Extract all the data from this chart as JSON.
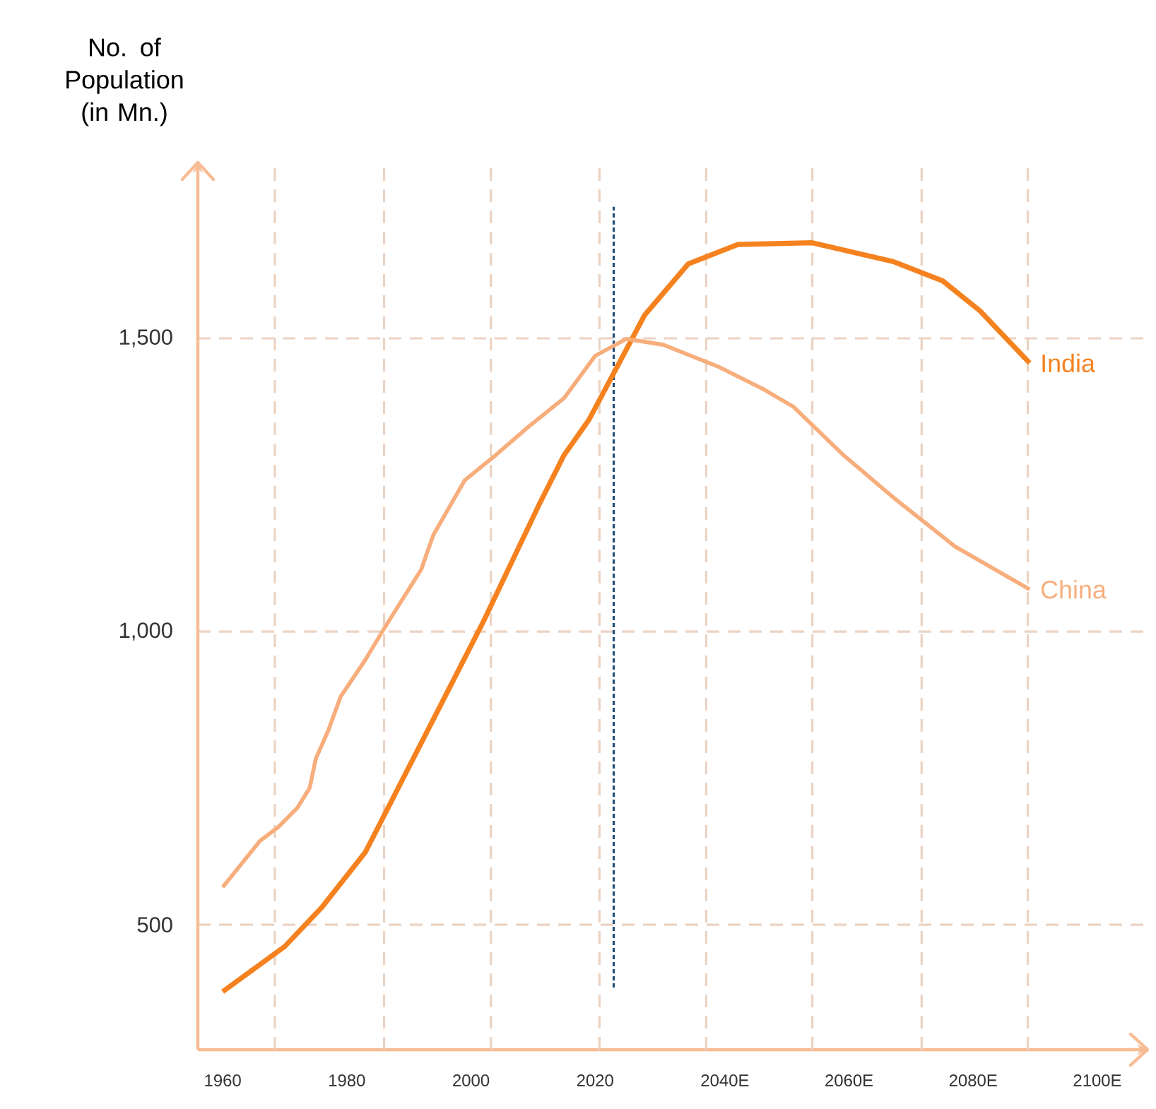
{
  "chart_data": {
    "type": "line",
    "ylabel": "No. of Population (in Mn.)",
    "x": [
      1960,
      1970,
      1976,
      1983,
      2002,
      2011,
      2015,
      2019,
      2028,
      2035,
      2043,
      2055,
      2068,
      2076,
      2082,
      2090
    ],
    "series": [
      {
        "name": "India",
        "color": "#f5821f",
        "values": [
          386,
          463,
          530,
          624,
          1017,
          1217,
          1301,
          1361,
          1540,
          1627,
          1660,
          1663,
          1631,
          1598,
          1547,
          1458
        ]
      },
      {
        "name": "China",
        "color": "#f7ae7c",
        "x": [
          1960,
          1966,
          1969,
          1972,
          1974,
          1975,
          1977,
          1979,
          1983,
          1986,
          1992,
          1993,
          1994,
          1999,
          2004,
          2009,
          2015,
          2020,
          2025,
          2031,
          2040,
          2047,
          2052,
          2060,
          2068,
          2078,
          2090
        ],
        "values": [
          564,
          643,
          667,
          699,
          733,
          783,
          831,
          889,
          952,
          1005,
          1106,
          1137,
          1166,
          1258,
          1301,
          1347,
          1398,
          1470,
          1499,
          1489,
          1451,
          1414,
          1383,
          1301,
          1229,
          1145,
          1072
        ]
      }
    ],
    "xlim": [
      1956,
      2109
    ],
    "ylim": [
      287,
      1800
    ],
    "xticks": [
      1960,
      {
        "value": 1968.4,
        "label": null
      },
      1980,
      {
        "value": 1986.0,
        "label": null
      },
      2000,
      {
        "value": 2003.2,
        "label": null
      },
      2020,
      {
        "value": 2020.7,
        "label": null
      },
      {
        "value": 2037.9,
        "label": null
      },
      {
        "value": 2040,
        "label": "2040E"
      },
      {
        "value": 2055.0,
        "label": null
      },
      {
        "value": 2060,
        "label": "2060E"
      },
      {
        "value": 2072.6,
        "label": null
      },
      {
        "value": 2080,
        "label": "2080E"
      },
      {
        "value": 2089.7,
        "label": null
      },
      {
        "value": 2100,
        "label": "2100E"
      }
    ],
    "yticks": [
      {
        "value": 500,
        "label": "500"
      },
      {
        "value": 1000,
        "label": "1,000"
      },
      {
        "value": 1500,
        "label": "1,500"
      }
    ],
    "ref_lines": [
      {
        "axis": "x",
        "value": 2023,
        "color": "#1f4e79",
        "line_style": "dashed"
      }
    ],
    "grid": true,
    "line_style": "solid",
    "marker": "none"
  }
}
